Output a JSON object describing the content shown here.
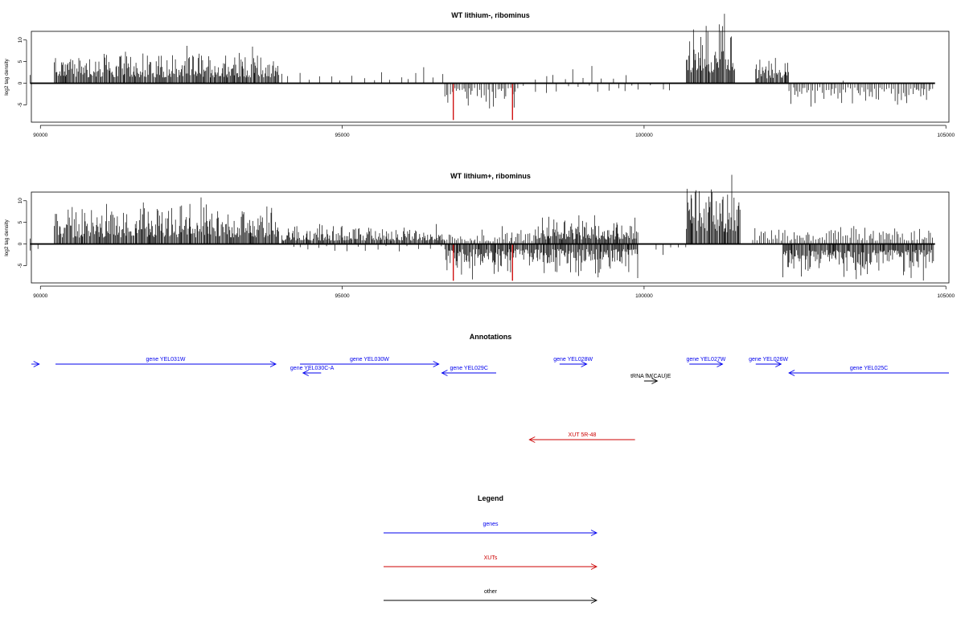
{
  "chart_data": [
    {
      "type": "bar",
      "title": "WT lithium-, ribominus",
      "xlabel": "",
      "ylabel": "log2 tag density",
      "xlim": [
        89850,
        105050
      ],
      "ylim": [
        -9,
        12
      ],
      "x_ticks": [
        "90000",
        "95000",
        "100000",
        "105000"
      ],
      "y_ticks": [
        "10",
        "5",
        "0",
        "-5"
      ],
      "colors": {
        "bars": "#000000",
        "highlight": "#cc0000"
      },
      "series": [
        {
          "strand": "plus",
          "segments": [
            {
              "x": [
                89830,
                90000
              ],
              "amp": 3.0,
              "density": "sparse"
            },
            {
              "x": [
                90230,
                93960
              ],
              "amp": 4.5,
              "density": "dense"
            },
            {
              "x": [
                94000,
                96700
              ],
              "amp": 2.0,
              "density": "sparse"
            },
            {
              "x": [
                98200,
                99900
              ],
              "amp": 2.5,
              "density": "sparse"
            },
            {
              "x": [
                100700,
                101500
              ],
              "amp": 8.0,
              "density": "dense"
            },
            {
              "x": [
                101850,
                102400
              ],
              "amp": 3.5,
              "density": "dense"
            },
            {
              "x": [
                103300,
                103400
              ],
              "amp": 1.5,
              "density": "sparse"
            }
          ]
        },
        {
          "strand": "minus",
          "segments": [
            {
              "x": [
                96700,
                97920
              ],
              "amp": 3.5,
              "density": "medium"
            },
            {
              "x": [
                98000,
                100500
              ],
              "amp": 1.5,
              "density": "sparse"
            },
            {
              "x": [
                102400,
                104800
              ],
              "amp": 3.0,
              "density": "medium"
            }
          ]
        }
      ],
      "highlight_x": [
        96840,
        97820
      ],
      "highlight_value": -8.5
    },
    {
      "type": "bar",
      "title": "WT lithium+, ribominus",
      "xlabel": "",
      "ylabel": "log2 tag density",
      "xlim": [
        89850,
        105050
      ],
      "ylim": [
        -9,
        12
      ],
      "x_ticks": [
        "90000",
        "95000",
        "100000",
        "105000"
      ],
      "y_ticks": [
        "10",
        "5",
        "0",
        "-5"
      ],
      "colors": {
        "bars": "#000000",
        "highlight": "#cc0000"
      },
      "series": [
        {
          "strand": "plus",
          "segments": [
            {
              "x": [
                89830,
                90000
              ],
              "amp": 3.0,
              "density": "sparse"
            },
            {
              "x": [
                90230,
                93950
              ],
              "amp": 5.0,
              "density": "dense"
            },
            {
              "x": [
                94000,
                96700
              ],
              "amp": 2.5,
              "density": "dense"
            },
            {
              "x": [
                96700,
                98200
              ],
              "amp": 2.0,
              "density": "medium"
            },
            {
              "x": [
                98200,
                99900
              ],
              "amp": 3.5,
              "density": "dense"
            },
            {
              "x": [
                100700,
                101600
              ],
              "amp": 9.0,
              "density": "dense"
            },
            {
              "x": [
                101800,
                104800
              ],
              "amp": 2.5,
              "density": "medium"
            }
          ]
        },
        {
          "strand": "minus",
          "segments": [
            {
              "x": [
                89830,
                90000
              ],
              "amp": 1.0,
              "density": "sparse"
            },
            {
              "x": [
                94200,
                96700
              ],
              "amp": 1.5,
              "density": "sparse"
            },
            {
              "x": [
                96700,
                99900
              ],
              "amp": 4.0,
              "density": "dense"
            },
            {
              "x": [
                100200,
                100700
              ],
              "amp": 1.5,
              "density": "sparse"
            },
            {
              "x": [
                102300,
                104800
              ],
              "amp": 4.5,
              "density": "dense"
            }
          ]
        }
      ],
      "highlight_x": [
        96840,
        97820
      ],
      "highlight_value": -8.5
    }
  ],
  "annotations": {
    "title": "Annotations",
    "color_gene": "#0000ee",
    "color_xut": "#cc0000",
    "color_other": "#000000",
    "items": [
      {
        "label": "",
        "kind": "gene",
        "x1": 89850,
        "x2": 89980,
        "dir": "right",
        "row": "top"
      },
      {
        "label": "gene YEL031W",
        "kind": "gene",
        "x1": 90250,
        "x2": 93900,
        "dir": "right",
        "row": "top"
      },
      {
        "label": "gene YEL030W",
        "kind": "gene",
        "x1": 94300,
        "x2": 96600,
        "dir": "right",
        "row": "top"
      },
      {
        "label": "gene YEL030C-A",
        "kind": "gene",
        "x1": 94350,
        "x2": 94650,
        "dir": "left",
        "row": "middle"
      },
      {
        "label": "gene YEL029C",
        "kind": "gene",
        "x1": 96650,
        "x2": 97550,
        "dir": "left",
        "row": "middle"
      },
      {
        "label": "gene YEL028W",
        "kind": "gene",
        "x1": 98600,
        "x2": 99050,
        "dir": "right",
        "row": "top"
      },
      {
        "label": "gene YEL027W",
        "kind": "gene",
        "x1": 100750,
        "x2": 101300,
        "dir": "right",
        "row": "top"
      },
      {
        "label": "gene YEL026W",
        "kind": "gene",
        "x1": 101850,
        "x2": 102270,
        "dir": "right",
        "row": "top"
      },
      {
        "label": "gene YEL025C",
        "kind": "gene",
        "x1": 102400,
        "x2": 105050,
        "dir": "left",
        "row": "middle"
      },
      {
        "label": "tRNA fM(CAU)E",
        "kind": "other",
        "x1": 100000,
        "x2": 100220,
        "dir": "right",
        "row": "bottom"
      },
      {
        "label": "XUT 5R-48",
        "kind": "xut",
        "x1": 98100,
        "x2": 99850,
        "dir": "left",
        "row": "xut"
      }
    ]
  },
  "legend": {
    "title": "Legend",
    "items": [
      {
        "label": "genes",
        "color": "#0000ee"
      },
      {
        "label": "XUTs",
        "color": "#cc0000"
      },
      {
        "label": "other",
        "color": "#000000"
      }
    ]
  }
}
